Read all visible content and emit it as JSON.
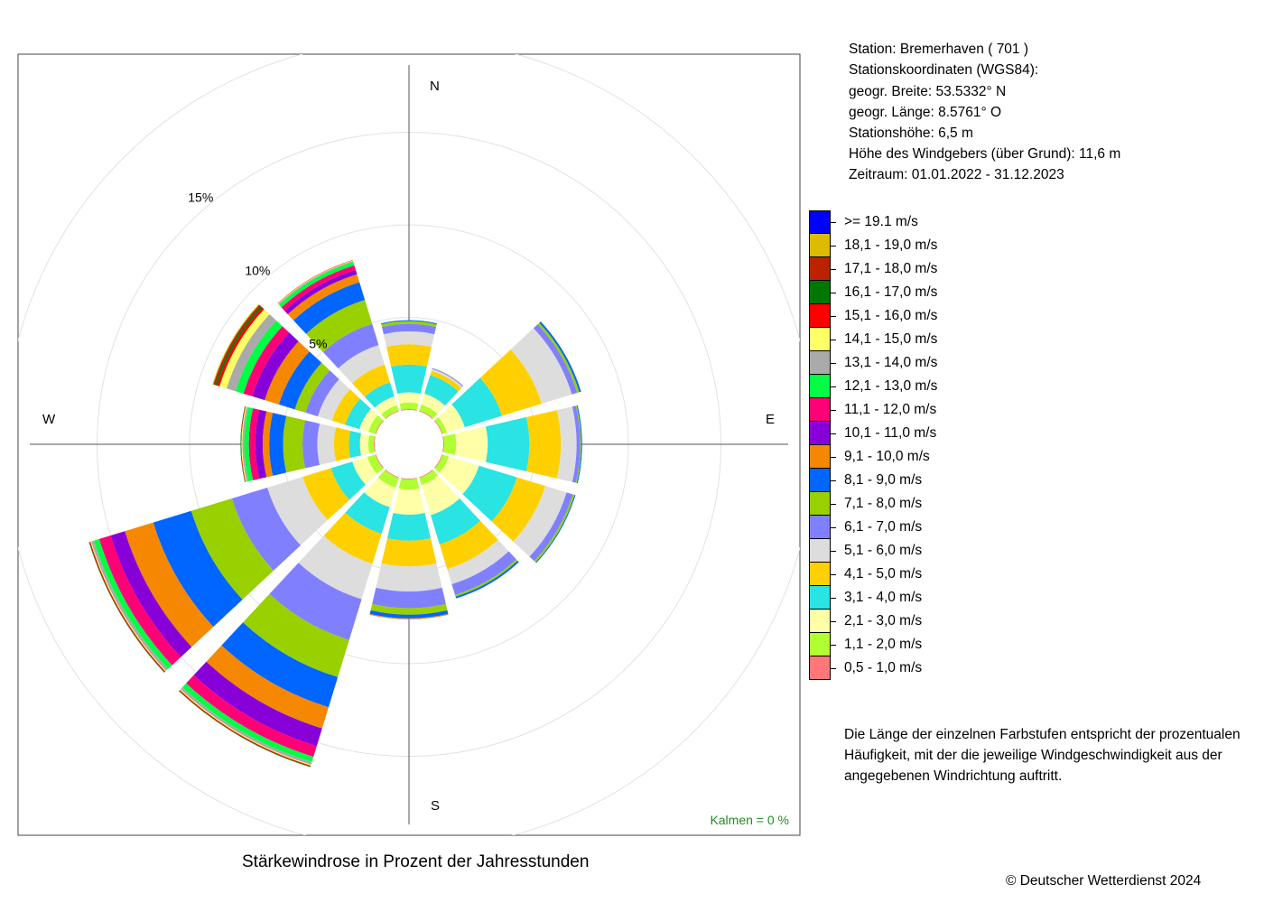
{
  "station": {
    "line1": "Station:  Bremerhaven  ( 701 )",
    "line2": "Stationskoordinaten (WGS84):",
    "line3": "geogr. Breite: 53.5332° N",
    "line4": "geogr. Länge:   8.5761° O",
    "line5": "Stationshöhe: 6,5 m",
    "line6": "Höhe des Windgebers (über Grund): 11,6 m",
    "line7": "Zeitraum: 01.01.2022 - 31.12.2023"
  },
  "note": {
    "line1": "Die Länge der einzelnen Farbstufen entspricht der prozentualen",
    "line2": "Häufigkeit, mit der die jeweilige Windgeschwindigkeit aus der",
    "line3": "angegebenen Windrichtung auftritt."
  },
  "calm_label": "Kalmen  =  0 %",
  "copyright": "© Deutscher Wetterdienst  2024",
  "chart_data": {
    "type": "windrose",
    "title": "Stärkewindrose in Prozent der Jahresstunden",
    "compass": {
      "n": "N",
      "e": "E",
      "s": "S",
      "w": "W"
    },
    "ring_labels": [
      {
        "pct": 5,
        "label": "5%"
      },
      {
        "pct": 10,
        "label": "10%"
      },
      {
        "pct": 15,
        "label": "15%"
      }
    ],
    "directions_deg": [
      0,
      30,
      60,
      90,
      120,
      150,
      180,
      210,
      240,
      270,
      300,
      330
    ],
    "speed_classes": [
      {
        "label": "0,5 - 1,0 m/s",
        "color": "#ff7777"
      },
      {
        "label": "1,1 - 2,0 m/s",
        "color": "#b0ff30"
      },
      {
        "label": "2,1 - 3,0 m/s",
        "color": "#ffffa8"
      },
      {
        "label": "3,1 - 4,0 m/s",
        "color": "#2ae3e3"
      },
      {
        "label": "4,1 - 5,0 m/s",
        "color": "#ffd000"
      },
      {
        "label": "5,1 - 6,0 m/s",
        "color": "#dddddd"
      },
      {
        "label": "6,1 - 7,0 m/s",
        "color": "#8080ff"
      },
      {
        "label": "7,1 - 8,0 m/s",
        "color": "#98d000"
      },
      {
        "label": "8,1 - 9,0 m/s",
        "color": "#0066ff"
      },
      {
        "label": "9,1 - 10,0 m/s",
        "color": "#f58800"
      },
      {
        "label": "10,1 - 11,0 m/s",
        "color": "#8800d8"
      },
      {
        "label": "11,1 - 12,0 m/s",
        "color": "#ff0077"
      },
      {
        "label": "12,1 - 13,0 m/s",
        "color": "#00ff44"
      },
      {
        "label": "13,1 - 14,0 m/s",
        "color": "#aaaaaa"
      },
      {
        "label": "14,1 - 15,0 m/s",
        "color": "#ffff66"
      },
      {
        "label": "15,1 - 16,0 m/s",
        "color": "#ff0000"
      },
      {
        "label": "16,1 - 17,0 m/s",
        "color": "#007700"
      },
      {
        "label": "17,1 - 18,0 m/s",
        "color": "#bb2200"
      },
      {
        "label": "18,1 - 19,0 m/s",
        "color": "#ddbb00"
      },
      {
        "label": ">= 19.1 m/s",
        "color": "#0000ff"
      }
    ],
    "values_pct": [
      [
        0.05,
        0.35,
        0.55,
        1.5,
        1.1,
        0.7,
        0.4,
        0.15,
        0.05,
        0,
        0,
        0,
        0,
        0,
        0,
        0,
        0,
        0,
        0,
        0
      ],
      [
        0.05,
        0.35,
        0.6,
        1.05,
        0.25,
        0.1,
        0.05,
        0.01,
        0,
        0,
        0,
        0,
        0,
        0,
        0,
        0,
        0,
        0,
        0,
        0
      ],
      [
        0.05,
        0.25,
        1.0,
        2.1,
        2.25,
        1.7,
        0.3,
        0.12,
        0.1,
        0,
        0,
        0,
        0,
        0,
        0,
        0,
        0,
        0,
        0,
        0
      ],
      [
        0.05,
        0.65,
        1.7,
        2.25,
        1.7,
        0.85,
        0.2,
        0.05,
        0.05,
        0,
        0,
        0,
        0,
        0,
        0,
        0,
        0,
        0,
        0,
        0
      ],
      [
        0.05,
        0.35,
        1.7,
        2.15,
        1.6,
        1.2,
        0.35,
        0.1,
        0.05,
        0,
        0,
        0,
        0,
        0,
        0,
        0,
        0,
        0,
        0,
        0
      ],
      [
        0.05,
        0.4,
        1.7,
        1.65,
        1.4,
        0.85,
        0.6,
        0.1,
        0.1,
        0,
        0,
        0,
        0,
        0,
        0,
        0,
        0,
        0,
        0,
        0
      ],
      [
        0.05,
        0.55,
        1.35,
        1.4,
        1.4,
        1.35,
        0.9,
        0.35,
        0.2,
        0.05,
        0,
        0,
        0,
        0,
        0,
        0,
        0,
        0,
        0,
        0
      ],
      [
        0.05,
        0.55,
        1.1,
        1.5,
        1.7,
        2.0,
        2.3,
        2.1,
        1.7,
        1.2,
        1.0,
        0.6,
        0.3,
        0.15,
        0.05,
        0.05,
        0.03,
        0,
        0,
        0
      ],
      [
        0.05,
        0.45,
        0.85,
        1.2,
        1.6,
        2.0,
        2.0,
        2.3,
        2.15,
        1.6,
        0.8,
        0.65,
        0.3,
        0.15,
        0.05,
        0.05,
        0.03,
        0,
        0,
        0
      ],
      [
        0.05,
        0.3,
        0.45,
        0.6,
        0.8,
        0.9,
        0.8,
        1.05,
        0.75,
        0.35,
        0.4,
        0.35,
        0.25,
        0.1,
        0.05,
        0.03,
        0.02,
        0,
        0,
        0
      ],
      [
        0.05,
        0.4,
        0.5,
        0.8,
        0.75,
        0.8,
        0.7,
        0.6,
        0.9,
        0.8,
        0.7,
        0.5,
        0.45,
        0.5,
        0.4,
        0.15,
        0.1,
        0.1,
        0.05,
        0
      ],
      [
        0.05,
        0.3,
        0.5,
        0.8,
        1.0,
        1.1,
        1.2,
        1.35,
        1.0,
        0.45,
        0.25,
        0.25,
        0.2,
        0.05,
        0.03,
        0.02,
        0,
        0,
        0,
        0
      ]
    ]
  }
}
